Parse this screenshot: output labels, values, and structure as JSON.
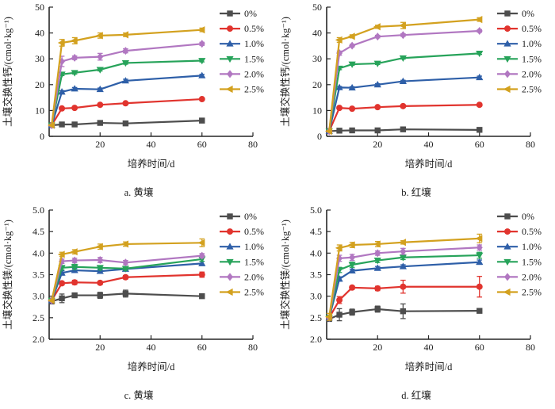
{
  "figure": {
    "background": "#ffffff",
    "axis_color": "#262626",
    "legend_labels": [
      "0%",
      "0.5%",
      "1.0%",
      "1.5%",
      "2.0%",
      "2.5%"
    ]
  },
  "chart_data": [
    {
      "type": "line",
      "caption": "a.  黄壤",
      "xlabel": "培养时间/d",
      "ylabel": "土壤交换性钙/(cmol·kg⁻¹)",
      "xlim": [
        0,
        80
      ],
      "ylim": [
        0,
        50
      ],
      "xticks": [
        "20",
        "40",
        "60",
        "80"
      ],
      "yticks": [
        "0",
        "10",
        "20",
        "30",
        "40",
        "50"
      ],
      "grid": false,
      "legend_position": "right",
      "x": [
        1,
        5,
        10,
        20,
        30,
        60
      ],
      "series": [
        {
          "name": "0%",
          "color": "#4d4d4d",
          "marker": "square",
          "values": [
            4.3,
            4.6,
            4.6,
            5.2,
            5.0,
            6.1
          ],
          "errors": [
            0,
            0.3,
            0.3,
            0.4,
            0.3,
            0.3
          ]
        },
        {
          "name": "0.5%",
          "color": "#e1342e",
          "marker": "circle",
          "values": [
            4.3,
            10.8,
            11.0,
            12.2,
            12.8,
            14.4
          ],
          "errors": [
            0,
            0.5,
            0.4,
            0.4,
            0.4,
            0.4
          ]
        },
        {
          "name": "1.0%",
          "color": "#2e5fa8",
          "marker": "triangle-up",
          "values": [
            4.3,
            17.2,
            18.4,
            18.2,
            21.5,
            23.5
          ],
          "errors": [
            0,
            0.5,
            0.5,
            0.5,
            0.6,
            0.5
          ]
        },
        {
          "name": "1.5%",
          "color": "#27a35a",
          "marker": "triangle-down",
          "values": [
            4.3,
            24.0,
            24.6,
            25.8,
            28.4,
            29.3
          ],
          "errors": [
            0,
            0.5,
            0.5,
            0.5,
            0.5,
            0.5
          ]
        },
        {
          "name": "2.0%",
          "color": "#b177c1",
          "marker": "diamond",
          "values": [
            4.3,
            29.0,
            30.4,
            30.8,
            33.1,
            35.8
          ],
          "errors": [
            0,
            2.0,
            0.7,
            1.3,
            0.8,
            0.6
          ]
        },
        {
          "name": "2.5%",
          "color": "#d3a11f",
          "marker": "triangle-left",
          "values": [
            4.3,
            36.2,
            37.0,
            39.0,
            39.3,
            41.2
          ],
          "errors": [
            0,
            1.3,
            1.2,
            1.0,
            0.7,
            0.7
          ]
        }
      ]
    },
    {
      "type": "line",
      "caption": "b.  红壤",
      "xlabel": "培养时间/d",
      "ylabel": "土壤交换性钙/(cmol·kg⁻¹)",
      "xlim": [
        0,
        80
      ],
      "ylim": [
        0,
        50
      ],
      "xticks": [
        "20",
        "40",
        "60",
        "80"
      ],
      "yticks": [
        "0",
        "10",
        "20",
        "30",
        "40",
        "50"
      ],
      "grid": false,
      "legend_position": "right",
      "x": [
        1,
        5,
        10,
        20,
        30,
        60
      ],
      "series": [
        {
          "name": "0%",
          "color": "#4d4d4d",
          "marker": "square",
          "values": [
            2.0,
            2.2,
            2.3,
            2.3,
            2.7,
            2.5
          ],
          "errors": [
            0,
            0.2,
            0.2,
            0.2,
            0.3,
            0.2
          ]
        },
        {
          "name": "0.5%",
          "color": "#e1342e",
          "marker": "circle",
          "values": [
            2.0,
            11.0,
            10.7,
            11.3,
            11.7,
            12.2
          ],
          "errors": [
            0,
            0.3,
            0.3,
            0.3,
            0.3,
            0.3
          ]
        },
        {
          "name": "1.0%",
          "color": "#2e5fa8",
          "marker": "triangle-up",
          "values": [
            2.0,
            18.9,
            18.8,
            20.0,
            21.3,
            22.8
          ],
          "errors": [
            0,
            0.4,
            0.4,
            0.4,
            0.4,
            0.5
          ]
        },
        {
          "name": "1.5%",
          "color": "#27a35a",
          "marker": "triangle-down",
          "values": [
            2.0,
            26.3,
            27.9,
            28.2,
            30.3,
            32.1
          ],
          "errors": [
            0,
            0.5,
            0.4,
            0.4,
            0.4,
            0.4
          ]
        },
        {
          "name": "2.0%",
          "color": "#b177c1",
          "marker": "diamond",
          "values": [
            2.0,
            32.2,
            35.1,
            38.6,
            39.2,
            40.8
          ],
          "errors": [
            0,
            0.8,
            0.5,
            0.5,
            0.5,
            0.5
          ]
        },
        {
          "name": "2.5%",
          "color": "#d3a11f",
          "marker": "triangle-left",
          "values": [
            2.0,
            37.3,
            38.7,
            42.4,
            42.9,
            45.2
          ],
          "errors": [
            0,
            0.9,
            0.6,
            0.6,
            1.2,
            0.7
          ]
        }
      ]
    },
    {
      "type": "line",
      "caption": "c.  黄壤",
      "xlabel": "培养时间/d",
      "ylabel": "土壤交换性镁/(cmol·kg⁻¹)",
      "xlim": [
        0,
        80
      ],
      "ylim": [
        2.0,
        5.0
      ],
      "xticks": [
        "20",
        "40",
        "60",
        "80"
      ],
      "yticks": [
        "2.0",
        "2.5",
        "3.0",
        "3.5",
        "4.0",
        "4.5",
        "5.0"
      ],
      "grid": false,
      "legend_position": "right",
      "x": [
        1,
        5,
        10,
        20,
        30,
        60
      ],
      "series": [
        {
          "name": "0%",
          "color": "#4d4d4d",
          "marker": "square",
          "values": [
            2.88,
            2.95,
            3.02,
            3.02,
            3.06,
            3.0
          ],
          "errors": [
            0.06,
            0.1,
            0.04,
            0.07,
            0.08,
            0.03
          ]
        },
        {
          "name": "0.5%",
          "color": "#e1342e",
          "marker": "circle",
          "values": [
            2.9,
            3.3,
            3.32,
            3.31,
            3.44,
            3.5
          ],
          "errors": [
            0,
            0.04,
            0.05,
            0.04,
            0.04,
            0.06
          ]
        },
        {
          "name": "1.0%",
          "color": "#2e5fa8",
          "marker": "triangle-up",
          "values": [
            2.9,
            3.54,
            3.6,
            3.58,
            3.63,
            3.76
          ],
          "errors": [
            0,
            0.05,
            0.05,
            0.05,
            0.04,
            0.05
          ]
        },
        {
          "name": "1.5%",
          "color": "#27a35a",
          "marker": "triangle-down",
          "values": [
            2.9,
            3.66,
            3.68,
            3.66,
            3.64,
            3.86
          ],
          "errors": [
            0,
            0.05,
            0.06,
            0.05,
            0.04,
            0.05
          ]
        },
        {
          "name": "2.0%",
          "color": "#b177c1",
          "marker": "diamond",
          "values": [
            2.9,
            3.81,
            3.83,
            3.84,
            3.78,
            3.94
          ],
          "errors": [
            0,
            0.05,
            0.05,
            0.06,
            0.05,
            0.05
          ]
        },
        {
          "name": "2.5%",
          "color": "#d3a11f",
          "marker": "triangle-left",
          "values": [
            2.9,
            3.97,
            4.03,
            4.15,
            4.21,
            4.24
          ],
          "errors": [
            0,
            0.05,
            0.05,
            0.06,
            0.05,
            0.09
          ]
        }
      ]
    },
    {
      "type": "line",
      "caption": "d.  红壤",
      "xlabel": "培养时间/d",
      "ylabel": "土壤交换性镁/(cmol·kg⁻¹)",
      "xlim": [
        0,
        80
      ],
      "ylim": [
        2.0,
        5.0
      ],
      "xticks": [
        "20",
        "40",
        "60",
        "80"
      ],
      "yticks": [
        "2.0",
        "2.5",
        "3.0",
        "3.5",
        "4.0",
        "4.5",
        "5.0"
      ],
      "grid": false,
      "legend_position": "right",
      "x": [
        1,
        5,
        10,
        20,
        30,
        60
      ],
      "series": [
        {
          "name": "0%",
          "color": "#4d4d4d",
          "marker": "square",
          "values": [
            2.47,
            2.57,
            2.63,
            2.7,
            2.65,
            2.66
          ],
          "errors": [
            0.05,
            0.14,
            0.07,
            0.07,
            0.17,
            0.05
          ]
        },
        {
          "name": "0.5%",
          "color": "#e1342e",
          "marker": "circle",
          "values": [
            2.5,
            2.91,
            3.2,
            3.18,
            3.22,
            3.22
          ],
          "errors": [
            0,
            0.08,
            0.04,
            0.05,
            0.15,
            0.24
          ]
        },
        {
          "name": "1.0%",
          "color": "#2e5fa8",
          "marker": "triangle-up",
          "values": [
            2.5,
            3.4,
            3.59,
            3.65,
            3.69,
            3.79
          ],
          "errors": [
            0,
            0.05,
            0.04,
            0.04,
            0.04,
            0.05
          ]
        },
        {
          "name": "1.5%",
          "color": "#27a35a",
          "marker": "triangle-down",
          "values": [
            2.5,
            3.61,
            3.73,
            3.83,
            3.9,
            3.95
          ],
          "errors": [
            0,
            0.06,
            0.06,
            0.05,
            0.05,
            0.07
          ]
        },
        {
          "name": "2.0%",
          "color": "#b177c1",
          "marker": "diamond",
          "values": [
            2.5,
            3.88,
            3.9,
            4.0,
            4.04,
            4.13
          ],
          "errors": [
            0,
            0.07,
            0.07,
            0.05,
            0.07,
            0.06
          ]
        },
        {
          "name": "2.5%",
          "color": "#d3a11f",
          "marker": "triangle-left",
          "values": [
            2.52,
            4.12,
            4.19,
            4.21,
            4.25,
            4.34
          ],
          "errors": [
            0.08,
            0.07,
            0.06,
            0.06,
            0.04,
            0.1
          ]
        }
      ]
    }
  ]
}
